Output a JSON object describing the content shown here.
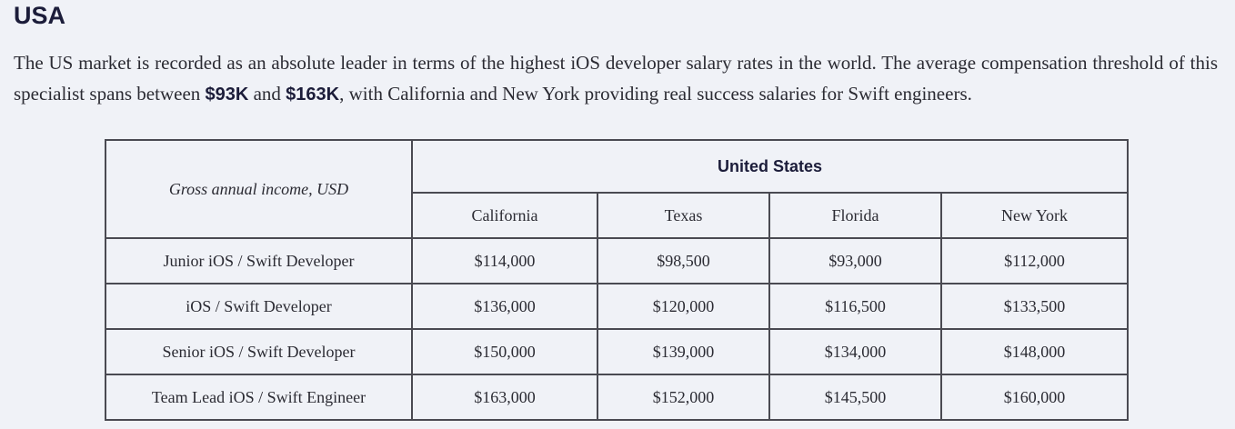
{
  "section": {
    "title": "USA"
  },
  "intro": {
    "text_1": "The US market is recorded as an absolute leader in terms of the highest iOS developer salary rates in the world. The average compensation threshold of this specialist spans between ",
    "low": "$93K",
    "text_2": " and ",
    "high": "$163K",
    "text_3": ", with California and New York providing real success salaries for Swift engineers."
  },
  "table": {
    "corner_label": "Gross annual income, USD",
    "group_header": "United States",
    "columns": [
      "California",
      "Texas",
      "Florida",
      "New York"
    ],
    "rows": [
      {
        "role": "Junior iOS / Swift Developer",
        "values": [
          "$114,000",
          "$98,500",
          "$93,000",
          "$112,000"
        ]
      },
      {
        "role": "iOS / Swift Developer",
        "values": [
          "$136,000",
          "$120,000",
          "$116,500",
          "$133,500"
        ]
      },
      {
        "role": "Senior iOS / Swift Developer",
        "values": [
          "$150,000",
          "$139,000",
          "$134,000",
          "$148,000"
        ]
      },
      {
        "role": "Team Lead iOS / Swift Engineer",
        "values": [
          "$163,000",
          "$152,000",
          "$145,500",
          "$160,000"
        ]
      }
    ]
  }
}
